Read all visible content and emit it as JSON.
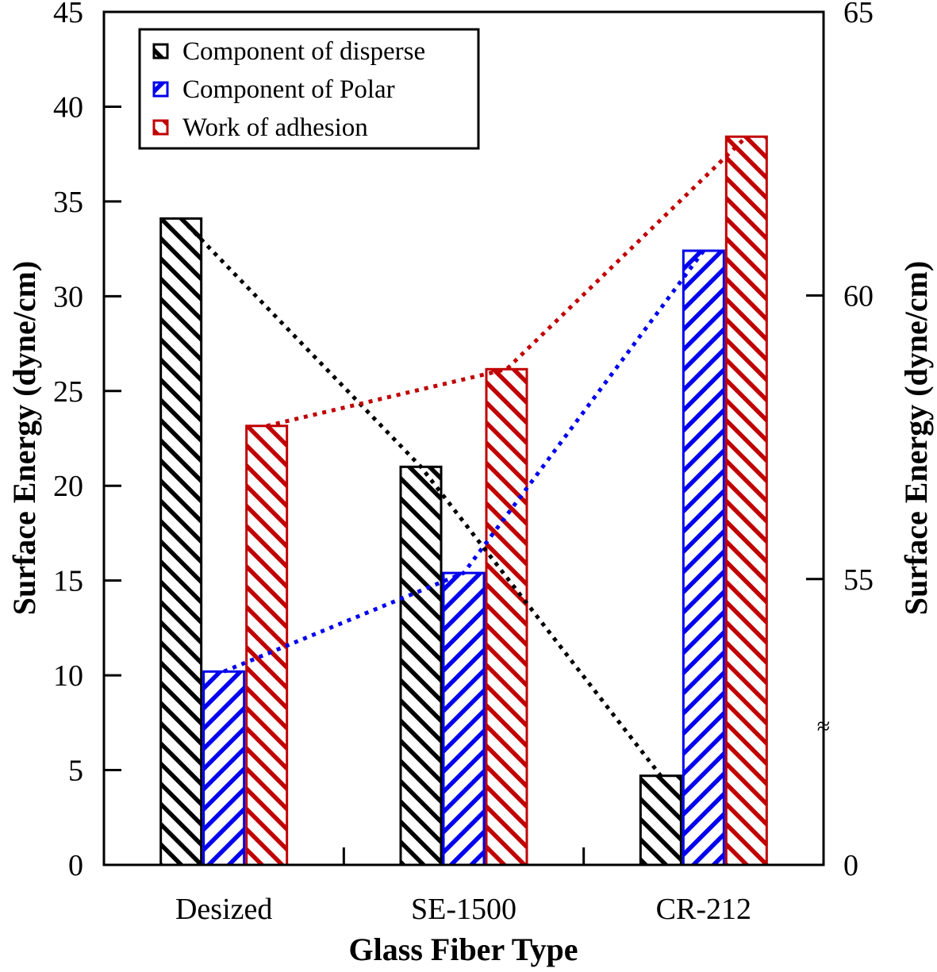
{
  "chart_data": {
    "type": "bar",
    "title": "",
    "xlabel": "Glass Fiber Type",
    "ylabel": "Surface Energy (dyne/cm)",
    "y2label": "Surface Energy (dyne/cm)",
    "categories": [
      "Desized",
      "SE-1500",
      "CR-212"
    ],
    "ylim": [
      0,
      45
    ],
    "y2lim": [
      50,
      65
    ],
    "y2_axis_break": true,
    "yticks": [
      0,
      5,
      10,
      15,
      20,
      25,
      30,
      35,
      40,
      45
    ],
    "y2ticks": [
      0,
      55,
      60,
      65
    ],
    "y2_break_symbol": "≈",
    "legend_position": "top-left",
    "grid": false,
    "series": [
      {
        "name": "Component of disperse",
        "axis": "left",
        "color": "#000000",
        "values": [
          34.1,
          21.0,
          4.7
        ],
        "trend_line": "dotted"
      },
      {
        "name": "Component of Polar",
        "axis": "left",
        "color": "#0000ee",
        "values": [
          10.2,
          15.4,
          32.4
        ],
        "trend_line": "dotted"
      },
      {
        "name": "Work of adhesion",
        "axis": "right",
        "color": "#c00000",
        "values": [
          57.7,
          58.7,
          62.8
        ],
        "trend_line": "dotted"
      }
    ]
  }
}
